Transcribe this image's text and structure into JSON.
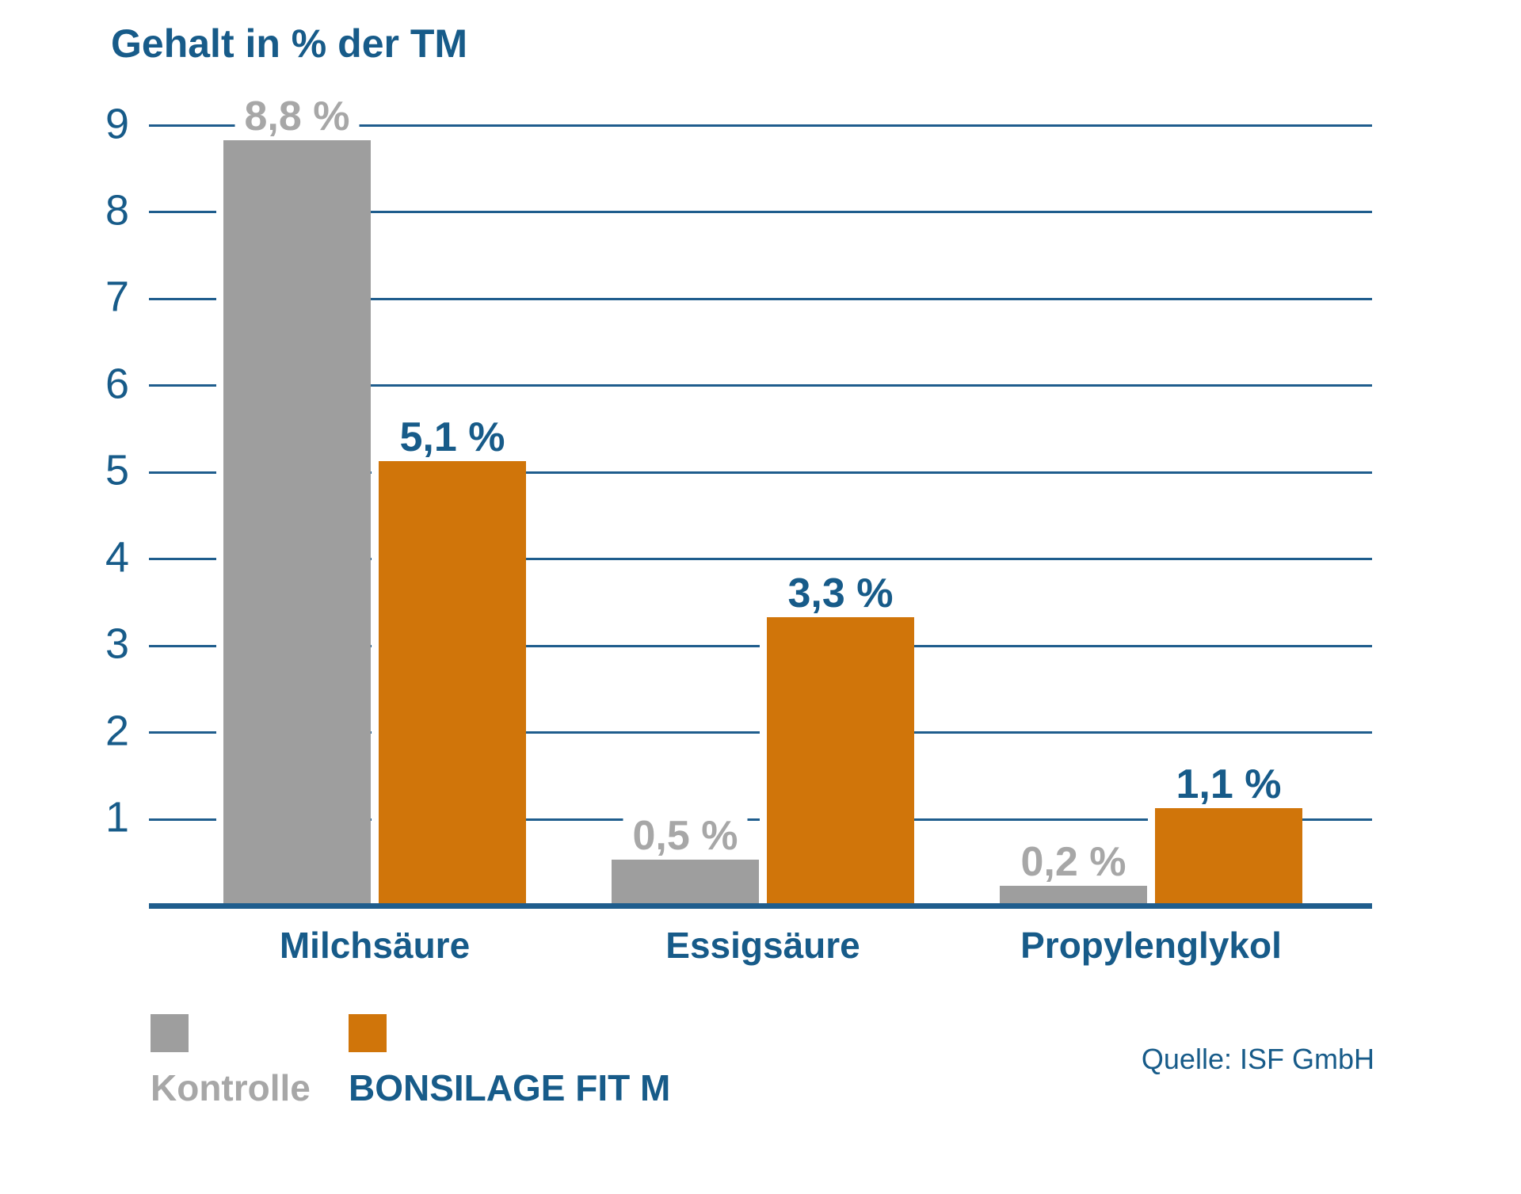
{
  "title": "Gehalt in % der TM",
  "source": "Quelle: ISF GmbH",
  "colors": {
    "blue_text": "#175b89",
    "blue_line": "#1f5d8d",
    "gray_bar": "#9e9e9e",
    "gray_text": "#a7a7a7",
    "orange_bar": "#d0750a",
    "background": "#ffffff"
  },
  "legend": {
    "items": [
      {
        "label": "Kontrolle",
        "series": "Kontrolle"
      },
      {
        "label": "BONSILAGE FIT M",
        "series": "BONSILAGE FIT M"
      }
    ],
    "position": "bottom-left"
  },
  "chart_data": {
    "type": "bar",
    "title": "Gehalt in % der TM",
    "xlabel": "",
    "ylabel": "Gehalt in % der TM",
    "categories": [
      "Milchsäure",
      "Essigsäure",
      "Propylenglykol"
    ],
    "series": [
      {
        "name": "Kontrolle",
        "color": "#9e9e9e",
        "label_color": "#a7a7a7",
        "values": [
          8.8,
          0.5,
          0.2
        ],
        "labels": [
          "8,8 %",
          "0,5 %",
          "0,2 %"
        ]
      },
      {
        "name": "BONSILAGE FIT M",
        "color": "#d0750a",
        "label_color": "#175b89",
        "values": [
          5.1,
          3.3,
          1.1
        ],
        "labels": [
          "5,1 %",
          "3,3 %",
          "1,1 %"
        ]
      }
    ],
    "ylim": [
      0,
      9
    ],
    "yticks": [
      "1",
      "2",
      "3",
      "4",
      "5",
      "6",
      "7",
      "8",
      "9"
    ],
    "grid": true,
    "legend_position": "bottom-left"
  }
}
